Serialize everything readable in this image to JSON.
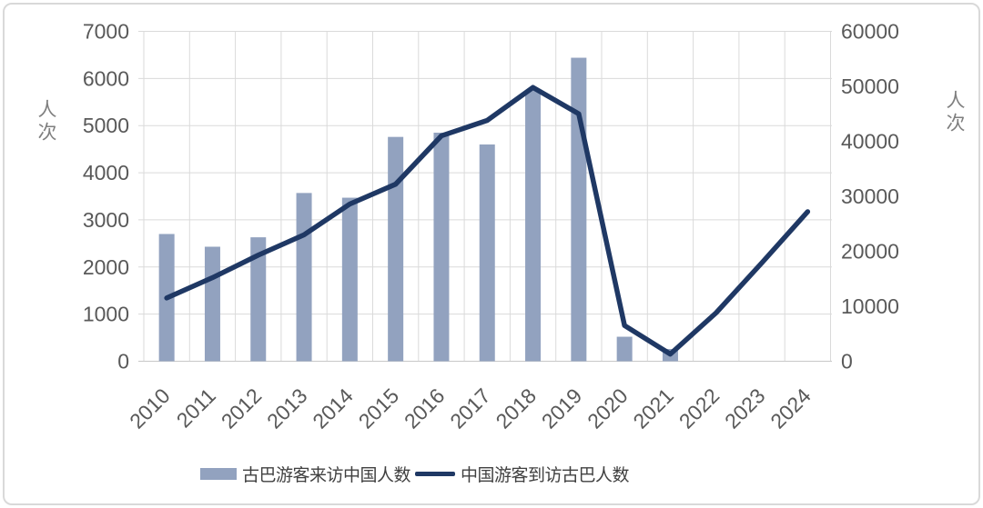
{
  "figure": {
    "left_axis_title": "人次",
    "right_axis_title": "人次"
  },
  "legend": {
    "items": [
      {
        "label": "古巴游客来访中国人数",
        "swatch": "bar"
      },
      {
        "label": "中国游客到访古巴人数",
        "swatch": "line"
      }
    ]
  },
  "colors": {
    "bar": "#92a2bf",
    "line": "#1f3864",
    "grid": "#dadada",
    "axis_line": "#c8c8c8",
    "tick_text": "#595959",
    "border": "#d9d9d9"
  },
  "chart_data": {
    "type": "bar",
    "subtype": "combo-bar-line",
    "title": "",
    "categories": [
      "2010",
      "2011",
      "2012",
      "2013",
      "2014",
      "2015",
      "2016",
      "2017",
      "2018",
      "2019",
      "2020",
      "2021",
      "2022",
      "2023",
      "2024"
    ],
    "series": [
      {
        "name": "古巴游客来访中国人数",
        "type": "bar",
        "axis": "left",
        "values": [
          2700,
          2430,
          2630,
          3570,
          3470,
          4760,
          4850,
          4600,
          5750,
          6440,
          520,
          260,
          null,
          null,
          null
        ]
      },
      {
        "name": "中国游客到访古巴人数",
        "type": "line",
        "axis": "right",
        "values": [
          11500,
          15200,
          19300,
          23000,
          28600,
          32200,
          41000,
          43800,
          49800,
          45000,
          6500,
          1300,
          8800,
          17900,
          27200
        ]
      }
    ],
    "left_axis": {
      "title": "人次",
      "min": 0,
      "max": 7000,
      "step": 1000
    },
    "right_axis": {
      "title": "人次",
      "min": 0,
      "max": 60000,
      "step": 10000
    },
    "grid": {
      "horizontal": true,
      "vertical": true
    },
    "legend_position": "bottom",
    "x_tick_rotation_deg": 45
  }
}
